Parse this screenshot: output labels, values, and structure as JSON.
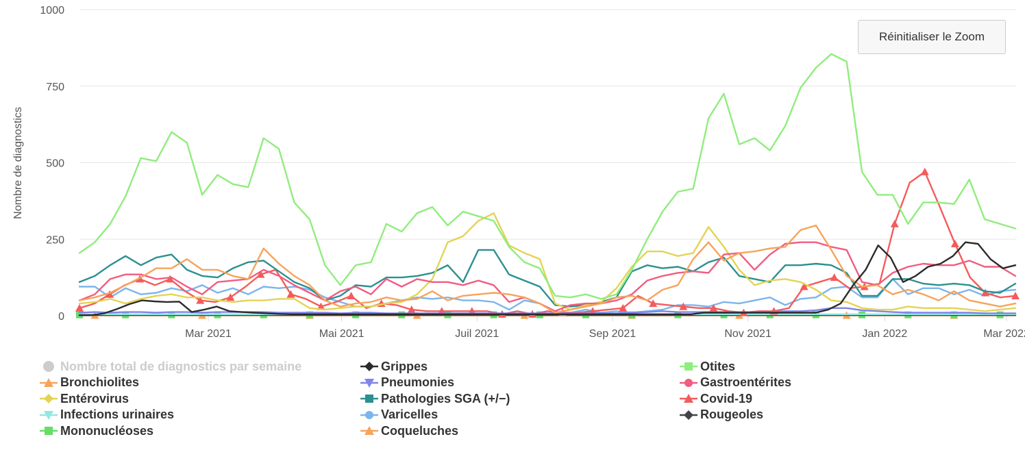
{
  "chart_data": {
    "type": "line",
    "title": "",
    "xlabel": "",
    "ylabel": "Nombre de diagnostics",
    "ylim": [
      0,
      1000
    ],
    "yticks": [
      0,
      250,
      500,
      750,
      1000
    ],
    "xlim": [
      0,
      1.0
    ],
    "xticks": [
      {
        "label": "Mar 2021",
        "pos": 0.1376
      },
      {
        "label": "Mai 2021",
        "pos": 0.2801
      },
      {
        "label": "Juil 2021",
        "pos": 0.4248
      },
      {
        "label": "Sep 2021",
        "pos": 0.5695
      },
      {
        "label": "Nov 2021",
        "pos": 0.7142
      },
      {
        "label": "Jan 2022",
        "pos": 0.8604
      },
      {
        "label": "Mar 2022",
        "pos": 0.9905
      }
    ],
    "series": [
      {
        "name": "Nombre total de diagnostics par semaine",
        "color": "#cccccc",
        "marker": "circle",
        "visible": false,
        "values": []
      },
      {
        "name": "Grippes",
        "color": "#2b2b2b",
        "marker": "diamond",
        "visible": true,
        "values": [
          2,
          2,
          8,
          22,
          38,
          50,
          47,
          45,
          46,
          12,
          20,
          30,
          15,
          12,
          10,
          8,
          6,
          5,
          5,
          5,
          5,
          5,
          5,
          5,
          5,
          5,
          5,
          5,
          5,
          5,
          5,
          5,
          5,
          5,
          5,
          5,
          5,
          5,
          5,
          5,
          5,
          5,
          5,
          5,
          5,
          5,
          5,
          5,
          5,
          5,
          10,
          10,
          10,
          10,
          10,
          10,
          10,
          10,
          10,
          10,
          20,
          40,
          100,
          150,
          230,
          190,
          110,
          130,
          160,
          170,
          195,
          240,
          235,
          185,
          155,
          165
        ]
      },
      {
        "name": "Otites",
        "color": "#90ed7d",
        "marker": "square",
        "visible": true,
        "values": [
          205,
          240,
          300,
          390,
          515,
          505,
          600,
          565,
          395,
          460,
          430,
          420,
          580,
          545,
          370,
          315,
          165,
          100,
          165,
          175,
          300,
          275,
          335,
          355,
          295,
          340,
          325,
          310,
          225,
          175,
          155,
          65,
          60,
          70,
          55,
          70,
          150,
          250,
          340,
          405,
          415,
          645,
          725,
          560,
          580,
          540,
          620,
          745,
          810,
          855,
          830,
          470,
          395,
          395,
          300,
          370,
          370,
          365,
          445,
          315,
          300,
          285
        ]
      },
      {
        "name": "Bronchiolites",
        "color": "#f7a35c",
        "marker": "triangle",
        "visible": true,
        "values": [
          50,
          60,
          75,
          100,
          125,
          155,
          155,
          185,
          150,
          150,
          130,
          120,
          220,
          170,
          130,
          100,
          50,
          30,
          40,
          45,
          60,
          50,
          55,
          80,
          50,
          65,
          70,
          75,
          70,
          60,
          40,
          10,
          20,
          30,
          40,
          60,
          65,
          50,
          85,
          100,
          185,
          240,
          180,
          205,
          210,
          220,
          225,
          280,
          295,
          215,
          130,
          95,
          100,
          70,
          85,
          70,
          50,
          80,
          50,
          40,
          30,
          40
        ]
      },
      {
        "name": "Pneumonies",
        "color": "#8085e9",
        "marker": "triangle-down",
        "visible": true,
        "values": [
          10,
          12,
          10,
          12,
          12,
          10,
          12,
          12,
          10,
          12,
          12,
          12,
          12,
          10,
          10,
          10,
          10,
          8,
          10,
          10,
          8,
          8,
          8,
          8,
          8,
          8,
          8,
          8,
          8,
          8,
          8,
          8,
          8,
          8,
          8,
          8,
          10,
          12,
          15,
          12,
          12,
          12,
          12,
          12,
          12,
          12,
          15,
          15,
          18,
          25,
          25,
          18,
          15,
          12,
          10,
          10,
          10,
          10,
          10,
          8,
          8,
          8
        ]
      },
      {
        "name": "Gastroentérites",
        "color": "#f15c80",
        "marker": "circle",
        "visible": true,
        "values": [
          50,
          70,
          120,
          135,
          135,
          120,
          125,
          95,
          70,
          110,
          115,
          120,
          150,
          130,
          100,
          75,
          50,
          80,
          95,
          70,
          120,
          95,
          120,
          110,
          110,
          100,
          115,
          100,
          45,
          60,
          40,
          15,
          35,
          40,
          40,
          50,
          70,
          115,
          130,
          140,
          145,
          140,
          200,
          205,
          150,
          200,
          235,
          240,
          240,
          225,
          215,
          110,
          100,
          140,
          160,
          170,
          165,
          165,
          180,
          160,
          160,
          130
        ]
      },
      {
        "name": "Entérovirus",
        "color": "#e4d354",
        "marker": "diamond",
        "visible": true,
        "values": [
          40,
          45,
          55,
          40,
          55,
          65,
          70,
          60,
          60,
          50,
          45,
          50,
          50,
          55,
          55,
          25,
          20,
          25,
          30,
          30,
          40,
          45,
          70,
          120,
          240,
          260,
          310,
          335,
          230,
          205,
          185,
          40,
          20,
          35,
          45,
          90,
          160,
          210,
          210,
          195,
          205,
          290,
          225,
          150,
          100,
          115,
          120,
          110,
          85,
          50,
          45,
          25,
          20,
          20,
          30,
          25,
          25,
          25,
          20,
          15,
          20,
          25
        ]
      },
      {
        "name": "Pathologies SGA (+/-)",
        "color": "#2b908f",
        "marker": "square",
        "visible": true,
        "values": [
          110,
          130,
          165,
          195,
          165,
          190,
          200,
          150,
          130,
          125,
          155,
          175,
          180,
          145,
          110,
          90,
          50,
          65,
          100,
          95,
          125,
          125,
          130,
          140,
          165,
          110,
          215,
          215,
          135,
          115,
          95,
          35,
          30,
          35,
          45,
          60,
          145,
          165,
          155,
          160,
          145,
          175,
          190,
          130,
          120,
          110,
          165,
          165,
          170,
          165,
          140,
          65,
          65,
          120,
          120,
          105,
          100,
          105,
          100,
          80,
          75,
          105
        ]
      },
      {
        "name": "Covid-19",
        "color": "#f45b5b",
        "marker": "triangle",
        "visible": true,
        "values": [
          25,
          40,
          70,
          100,
          120,
          100,
          120,
          80,
          50,
          45,
          60,
          95,
          135,
          150,
          70,
          55,
          30,
          45,
          65,
          25,
          40,
          35,
          20,
          15,
          15,
          15,
          15,
          15,
          5,
          15,
          5,
          15,
          10,
          10,
          15,
          20,
          25,
          65,
          40,
          35,
          30,
          25,
          25,
          15,
          10,
          15,
          15,
          25,
          95,
          110,
          125,
          90,
          95,
          105,
          300,
          435,
          470,
          355,
          235,
          125,
          75,
          60,
          65
        ]
      },
      {
        "name": "Infections urinaires",
        "color": "#91e8e1",
        "marker": "triangle-down",
        "visible": true,
        "values": [
          5,
          5,
          5,
          5,
          5,
          5,
          5,
          5,
          5,
          5,
          5,
          5,
          5,
          5,
          5,
          5,
          5,
          5,
          5,
          5,
          5,
          5,
          5,
          5,
          5,
          5,
          5,
          5,
          5,
          5,
          5,
          5,
          5,
          5,
          5,
          5,
          5,
          5,
          5,
          5,
          5,
          5,
          5,
          5,
          5,
          5,
          5,
          5,
          5,
          5,
          5,
          5,
          5,
          5,
          5,
          5,
          5,
          5,
          5,
          5,
          5,
          5
        ]
      },
      {
        "name": "Varicelles",
        "color": "#7cb5ec",
        "marker": "circle",
        "visible": true,
        "values": [
          95,
          95,
          60,
          90,
          70,
          75,
          90,
          80,
          100,
          75,
          90,
          70,
          95,
          90,
          95,
          85,
          60,
          45,
          30,
          30,
          40,
          50,
          60,
          55,
          60,
          50,
          50,
          45,
          20,
          50,
          40,
          10,
          10,
          20,
          10,
          15,
          10,
          15,
          20,
          35,
          35,
          30,
          45,
          40,
          50,
          60,
          35,
          55,
          60,
          90,
          95,
          60,
          60,
          120,
          70,
          90,
          90,
          70,
          85,
          65,
          80,
          85
        ]
      },
      {
        "name": "Rougeoles",
        "color": "#434348",
        "marker": "diamond",
        "visible": true,
        "values": [
          2,
          2,
          2,
          2,
          2,
          2,
          2,
          2,
          2,
          2,
          2,
          2,
          2,
          2,
          2,
          2,
          2,
          2,
          2,
          2,
          2,
          2,
          2,
          2,
          2,
          2,
          2,
          2,
          2,
          2,
          2,
          2,
          2,
          2,
          2,
          2,
          2,
          2,
          2,
          2,
          2,
          2,
          2,
          2,
          2,
          2,
          2,
          2,
          2,
          2,
          2,
          2,
          2,
          2,
          2,
          2,
          2,
          2,
          2,
          2,
          2,
          2
        ]
      },
      {
        "name": "Mononucléoses",
        "color": "#66dd66",
        "marker": "square",
        "visible": true,
        "values": [
          3,
          3,
          3,
          3,
          3,
          3,
          3,
          3,
          3,
          3,
          3,
          3,
          3,
          3,
          3,
          3,
          3,
          3,
          3,
          3,
          3,
          3,
          3,
          3,
          3,
          3,
          3,
          3,
          3,
          3,
          3,
          3,
          3,
          3,
          3,
          3,
          3,
          3,
          3,
          3,
          3,
          3,
          3,
          3,
          3,
          3,
          3,
          3,
          3,
          3,
          3,
          3,
          3,
          3,
          3,
          3,
          3,
          3,
          3,
          3,
          3,
          3
        ]
      },
      {
        "name": "Coqueluches",
        "color": "#f7a35c",
        "marker": "triangle",
        "visible": true,
        "values": [
          1,
          1,
          1,
          1,
          1,
          1,
          1,
          1,
          1,
          1,
          1,
          1,
          1,
          1,
          1,
          1,
          1,
          1,
          1,
          1,
          1,
          1,
          1,
          1,
          1,
          1,
          1,
          1,
          1,
          1,
          1,
          1,
          1,
          1,
          1,
          1,
          1,
          1,
          1,
          1,
          1,
          1,
          1,
          1,
          1,
          1,
          1,
          1,
          1,
          1,
          1,
          1,
          1,
          1,
          1,
          1,
          1,
          1,
          1,
          1,
          1,
          1
        ]
      }
    ]
  },
  "toolbar": {
    "reset_zoom_label": "Réinitialiser le Zoom"
  },
  "legend": {
    "items": [
      {
        "label": "Nombre total de diagnostics par semaine",
        "color": "#cccccc",
        "marker": "circle",
        "hidden": true
      },
      {
        "label": "Grippes",
        "color": "#2b2b2b",
        "marker": "diamond",
        "hidden": false
      },
      {
        "label": "Otites",
        "color": "#90ed7d",
        "marker": "square",
        "hidden": false
      },
      {
        "label": "Bronchiolites",
        "color": "#f7a35c",
        "marker": "triangle",
        "hidden": false
      },
      {
        "label": "Pneumonies",
        "color": "#8085e9",
        "marker": "triangle-down",
        "hidden": false
      },
      {
        "label": "Gastroentérites",
        "color": "#f15c80",
        "marker": "circle",
        "hidden": false
      },
      {
        "label": "Entérovirus",
        "color": "#e4d354",
        "marker": "diamond",
        "hidden": false
      },
      {
        "label": "Pathologies SGA (+/−)",
        "color": "#2b908f",
        "marker": "square",
        "hidden": false
      },
      {
        "label": "Covid-19",
        "color": "#f45b5b",
        "marker": "triangle",
        "hidden": false
      },
      {
        "label": "Infections urinaires",
        "color": "#91e8e1",
        "marker": "triangle-down",
        "hidden": false
      },
      {
        "label": "Varicelles",
        "color": "#7cb5ec",
        "marker": "circle",
        "hidden": false
      },
      {
        "label": "Rougeoles",
        "color": "#434348",
        "marker": "diamond",
        "hidden": false
      },
      {
        "label": "Mononucléoses",
        "color": "#66dd66",
        "marker": "square",
        "hidden": false
      },
      {
        "label": "Coqueluches",
        "color": "#f7a35c",
        "marker": "triangle",
        "hidden": false
      }
    ]
  }
}
